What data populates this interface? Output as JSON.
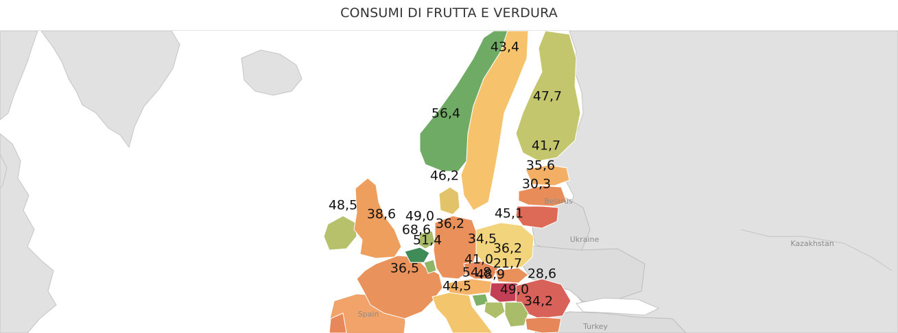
{
  "title": "CONSUMI DI FRUTTA E VERDURA",
  "map": {
    "colors": {
      "background_land": "#e3e3e3",
      "sea": "#ffffff",
      "border": "#bcbcbc",
      "scale_low": "#d6555c",
      "scale_mid": "#f7c26c",
      "scale_high": "#5da46a"
    },
    "geo_labels": {
      "belarus": "Belarus",
      "ukraine": "Ukraine",
      "kazakhstan": "Kazakhstan",
      "turkey": "Turkey",
      "spain": "Spain"
    },
    "regions": {
      "norway": {
        "value": "56,4",
        "color": "#6fab64"
      },
      "sweden": {
        "value": "43,4",
        "color": "#f6c26c"
      },
      "finland": {
        "value": "47,7",
        "color": "#c4c66d"
      },
      "estonia": {
        "value": "41,7",
        "color": "#f3b065"
      },
      "latvia": {
        "value": "35,6",
        "color": "#e88d5a"
      },
      "lithuania": {
        "value": "30,3",
        "color": "#dc6a57"
      },
      "denmark": {
        "value": "46,2",
        "color": "#e2c36a"
      },
      "ireland": {
        "value": "48,5",
        "color": "#b7c06a"
      },
      "uk": {
        "value": "38,6",
        "color": "#ee9e5d"
      },
      "netherlands": {
        "value": "49,0",
        "color": "#a9bc69"
      },
      "belgium": {
        "value": "68,6",
        "color": "#3f8c58"
      },
      "luxembourg": {
        "value": "51,4",
        "color": "#8db666"
      },
      "germany": {
        "value": "36,2",
        "color": "#e9905b"
      },
      "poland": {
        "value": "45,1",
        "color": "#f1d47b"
      },
      "czechia": {
        "value": "34,5",
        "color": "#e6885a"
      },
      "slovakia": {
        "value": "36,2",
        "color": "#e9905b"
      },
      "austria": {
        "value": "41,0",
        "color": "#f4b366"
      },
      "hungary": {
        "value": "21,7",
        "color": "#c23f56"
      },
      "slovenia": {
        "value": "54,8",
        "color": "#7eb166"
      },
      "croatia": {
        "value": "48,9",
        "color": "#afbe69"
      },
      "romania": {
        "value": "28,6",
        "color": "#d8615a"
      },
      "bulgaria": {
        "value": "34,2",
        "color": "#e6875a"
      },
      "serbia": {
        "value": "49,0",
        "color": "#a9bc69"
      },
      "france": {
        "value": "36,5",
        "color": "#e9925b"
      },
      "italy": {
        "value": "44,5",
        "color": "#f3c56d"
      }
    }
  }
}
